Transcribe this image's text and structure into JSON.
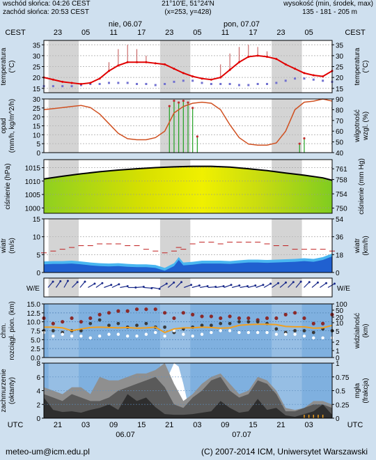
{
  "header": {
    "sunrise": "wschód słońca: 04:26 CEST",
    "sunset": "zachód słońca: 20:53 CEST",
    "coords": "21°10'E, 51°24'N",
    "grid": "(x=253, y=428)",
    "height_title": "wysokość (min, środek, max)",
    "height_values": "135 - 181 - 205 m"
  },
  "top_axis": {
    "tz": "CEST",
    "day1": "nie, 06.07",
    "day2": "pon, 07.07",
    "ticks": [
      "23",
      "05",
      "11",
      "17",
      "23",
      "05",
      "11",
      "17",
      "23",
      "05"
    ]
  },
  "bottom_axis": {
    "tz": "UTC",
    "ticks": [
      "21",
      "03",
      "09",
      "15",
      "21",
      "03",
      "09",
      "15",
      "21",
      "03"
    ],
    "day1": "06.07",
    "day2": "07.07"
  },
  "footer": {
    "email": "meteo-um@icm.edu.pl",
    "copyright": "(C) 2007-2014 ICM, Uniwersytet Warszawski"
  },
  "colors": {
    "night_shade": "#d4d4d4",
    "panel_bg": "#ffffff",
    "temperature": "#e00000",
    "dewpoint": "#7070d0",
    "humidity": "#d05020",
    "precip": "#20a020",
    "pressure_line": "#000000",
    "wind_gust": "#c02020",
    "wind_fill": "#2060d0",
    "cloud_bg": "#7fb0df",
    "visibility": "#f0a020"
  },
  "chart_data": [
    {
      "type": "line",
      "name": "temperature",
      "ylabel_left": "temperatura (°C)",
      "ylabel_right": "temperatura (°C)",
      "ylim": [
        13,
        37
      ],
      "yticks": [
        15,
        20,
        25,
        30,
        35
      ],
      "x_hours_utc": [
        18,
        20,
        22,
        24,
        26,
        28,
        30,
        32,
        34,
        36,
        38,
        40,
        42,
        44,
        46,
        48,
        50,
        52,
        54,
        56,
        58,
        60,
        62,
        64,
        66,
        68,
        70,
        72,
        74,
        76,
        78,
        80
      ],
      "temperature": [
        20,
        19,
        18,
        17.5,
        17,
        17.5,
        19.5,
        23,
        25.5,
        27,
        27,
        27,
        26.5,
        26,
        24,
        22,
        20.5,
        19.5,
        19,
        20,
        23.5,
        27,
        29.5,
        30,
        29.5,
        28.5,
        26,
        24,
        22,
        21,
        20.5,
        23
      ],
      "dewpoint": [
        16,
        16,
        16,
        16,
        16.5,
        17,
        17,
        17.5,
        17.5,
        17.5,
        17,
        17,
        16.5,
        17,
        18,
        18.5,
        18.5,
        17.5,
        17,
        17,
        17,
        16.5,
        16.5,
        17,
        17,
        17.5,
        18.5,
        19.5,
        19.5,
        19,
        18.5,
        18
      ],
      "gust_bars_x": [
        32,
        34,
        36,
        38,
        40,
        56,
        58,
        60,
        62,
        64,
        66,
        68
      ],
      "gust_bars_top": [
        27,
        33,
        35,
        33,
        30,
        26,
        31,
        34,
        35,
        34,
        32,
        28
      ]
    },
    {
      "type": "line",
      "name": "precipitation-humidity",
      "ylabel_left": "opad (mm/h, kg/m^2/h)",
      "ylabel_right": "wilgotność wzgl. (%)",
      "ylim_left": [
        0,
        30
      ],
      "yticks_left": [
        0,
        5,
        10,
        15,
        20,
        25,
        30
      ],
      "ylim_right": [
        40,
        90
      ],
      "yticks_right": [
        40,
        50,
        60,
        70,
        80,
        90
      ],
      "x_hours_utc": [
        18,
        20,
        22,
        24,
        26,
        28,
        30,
        32,
        34,
        36,
        38,
        40,
        42,
        44,
        46,
        48,
        50,
        52,
        54,
        56,
        58,
        60,
        62,
        64,
        66,
        68,
        70,
        72,
        74,
        76,
        78,
        80
      ],
      "humidity": [
        80,
        81,
        82,
        83,
        84,
        82,
        76,
        67,
        58,
        53,
        52,
        52,
        54,
        60,
        77,
        83,
        86,
        87,
        86,
        80,
        66,
        54,
        48,
        47,
        47,
        49,
        60,
        80,
        87,
        88,
        90,
        88
      ],
      "precip_x": [
        45,
        46,
        47,
        48,
        49,
        50,
        51,
        73,
        74
      ],
      "precip": [
        26,
        29,
        28,
        29,
        28,
        25,
        9,
        5,
        8
      ]
    },
    {
      "type": "area",
      "name": "pressure",
      "ylabel_left": "ciśnienie (hPa)",
      "ylabel_right": "ciśnienie (mm Hg)",
      "ylim": [
        998,
        1018
      ],
      "yticks_left": [
        1000,
        1005,
        1010,
        1015
      ],
      "yticks_right": [
        750,
        754,
        758,
        761
      ],
      "x_hours_utc": [
        18,
        22,
        26,
        30,
        34,
        38,
        42,
        46,
        50,
        54,
        58,
        62,
        66,
        70,
        74,
        78,
        80
      ],
      "pressure": [
        1010.8,
        1011.8,
        1012.7,
        1013.5,
        1014.1,
        1014.6,
        1015.0,
        1015.3,
        1015.5,
        1015.5,
        1015.2,
        1014.6,
        1013.9,
        1013.0,
        1012.2,
        1011.2,
        1010.3
      ]
    },
    {
      "type": "area",
      "name": "wind",
      "ylabel_left": "wiatr (m/s)",
      "ylabel_right": "wiatr (km/h)",
      "ylim": [
        0,
        15
      ],
      "yticks_left": [
        0,
        5,
        10,
        15
      ],
      "yticks_right": [
        0,
        18,
        36,
        54
      ],
      "x_hours_utc": [
        18,
        20,
        22,
        24,
        26,
        28,
        30,
        32,
        34,
        36,
        38,
        40,
        42,
        44,
        46,
        47,
        48,
        50,
        52,
        54,
        56,
        58,
        60,
        62,
        64,
        66,
        68,
        70,
        72,
        74,
        76,
        78,
        80
      ],
      "speed": [
        2.3,
        2.4,
        2.4,
        2.5,
        2.3,
        2.0,
        1.8,
        1.7,
        1.8,
        1.6,
        1.5,
        1.5,
        1.3,
        0.5,
        1.8,
        3.5,
        2.0,
        2.2,
        2.5,
        2.5,
        2.5,
        2.4,
        2.6,
        2.8,
        2.8,
        2.7,
        2.8,
        2.9,
        3.0,
        3.2,
        3.0,
        3.5,
        4.5
      ],
      "gust": [
        5.5,
        6,
        6.5,
        7,
        7.5,
        7.5,
        8,
        8,
        8,
        7.5,
        7.5,
        6.5,
        6,
        5.5,
        6,
        7,
        6.5,
        8,
        8.5,
        8.5,
        8,
        8.5,
        8.5,
        8.5,
        8.5,
        8,
        7.5,
        7.5,
        6.5,
        6.5,
        6.5,
        6.5,
        6
      ]
    },
    {
      "type": "scatter",
      "name": "visibility",
      "ylabel_left": "chm. rozciągł. pion. (km)",
      "ylabel_right": "widzialność (km)",
      "ylim_left": [
        0,
        15
      ],
      "yticks_left": [
        0,
        2.5,
        5,
        7.5,
        10,
        12.5,
        15
      ],
      "yticks_right": [
        0,
        1,
        2,
        5,
        10,
        20,
        50,
        100
      ],
      "x_hours_utc": [
        18,
        20,
        22,
        24,
        26,
        28,
        30,
        32,
        34,
        36,
        38,
        40,
        42,
        44,
        46,
        48,
        50,
        52,
        54,
        56,
        58,
        60,
        62,
        64,
        66,
        68,
        70,
        72,
        74,
        76,
        78,
        80
      ],
      "visibility_line": [
        8.5,
        8.5,
        8.3,
        7.5,
        8.0,
        8.4,
        8.5,
        8.4,
        8.3,
        8.4,
        8.2,
        8.3,
        8.5,
        7.0,
        8.0,
        8.3,
        8.3,
        8.5,
        8.4,
        8.2,
        8.3,
        9.0,
        9.2,
        9.3,
        9.3,
        9.2,
        8.7,
        8.6,
        8.6,
        8.2,
        8.3,
        9.0
      ],
      "cloud_top_high": [
        11,
        9.5,
        10,
        11,
        10,
        11,
        12,
        12.5,
        13,
        13,
        13.5,
        13.5,
        13.5,
        12.5,
        11,
        12.5,
        12,
        11.5,
        11.5,
        11,
        11.5,
        11,
        11,
        10.5,
        11,
        11,
        12,
        12.5,
        11,
        9.5,
        9.5,
        12
      ],
      "cloud_top_mid": [
        7.5,
        7.5,
        7.0,
        7.5,
        7.5,
        9.5,
        10.5,
        9.0,
        9.5,
        8.5,
        9.0,
        9.5,
        8.5,
        8.5,
        7.0,
        8.0,
        8.5,
        9.0,
        9.0,
        9.5,
        9.5,
        10.0,
        10.0,
        10.0,
        9.5,
        8.0,
        7.0,
        7.5,
        7.5,
        7.0,
        8.0,
        7.5
      ],
      "cloud_base": [
        7.0,
        6.0,
        6.5,
        6.0,
        6.0,
        5.5,
        6.0,
        6.5,
        6.5,
        6.0,
        6.0,
        6.5,
        7.0,
        6.0,
        7.5,
        6.5,
        6.0,
        6.5,
        7.0,
        7.5,
        7.5,
        7.0,
        7.0,
        7.0,
        7.0,
        6.5,
        6.5,
        6.5,
        6.0,
        5.5,
        5.5,
        5.5
      ]
    },
    {
      "type": "area",
      "name": "cloud-cover",
      "ylabel_left": "zachmurzenie (oktanty)",
      "ylabel_right": "mgła (frakcja)",
      "ylim": [
        0,
        8
      ],
      "yticks_left": [
        0,
        2,
        4,
        6,
        8
      ],
      "yticks_right": [
        0,
        0.25,
        0.5,
        0.75,
        1
      ],
      "x_hours_utc": [
        18,
        20,
        22,
        24,
        26,
        28,
        30,
        32,
        34,
        36,
        38,
        40,
        42,
        44,
        46,
        48,
        50,
        52,
        54,
        56,
        58,
        60,
        62,
        64,
        66,
        68,
        70,
        72,
        74,
        76,
        78,
        80
      ],
      "low_clouds": [
        3.0,
        1.2,
        0.9,
        1.0,
        0.8,
        1.2,
        1.5,
        2.0,
        1.2,
        3.5,
        2.5,
        3.0,
        1.6,
        0.6,
        0.5,
        0.5,
        0.6,
        0.8,
        1.0,
        2.5,
        1.5,
        0.8,
        1.0,
        2.8,
        1.2,
        1.5,
        0.4,
        0.2,
        0.6,
        1.0,
        2.0,
        0.5
      ],
      "mid_clouds": [
        3.5,
        3.0,
        2.5,
        3.5,
        3.0,
        2.5,
        2.5,
        3.0,
        4.0,
        4.5,
        5.0,
        5.5,
        6.0,
        4.5,
        2.0,
        1.5,
        3.0,
        4.0,
        5.5,
        6.0,
        4.0,
        3.0,
        3.5,
        5.5,
        5.0,
        3.5,
        1.0,
        1.0,
        1.5,
        2.0,
        2.0,
        1.5
      ],
      "total_clouds": [
        4.5,
        4.0,
        3.5,
        4.5,
        4.5,
        3.5,
        6.0,
        5.5,
        5.5,
        6.0,
        6.5,
        6.5,
        7.0,
        8.0,
        5.0,
        2.5,
        3.5,
        5.0,
        6.0,
        6.5,
        5.0,
        3.5,
        4.0,
        6.0,
        5.5,
        4.0,
        1.5,
        1.2,
        1.5,
        2.5,
        2.5,
        2.0
      ]
    }
  ]
}
